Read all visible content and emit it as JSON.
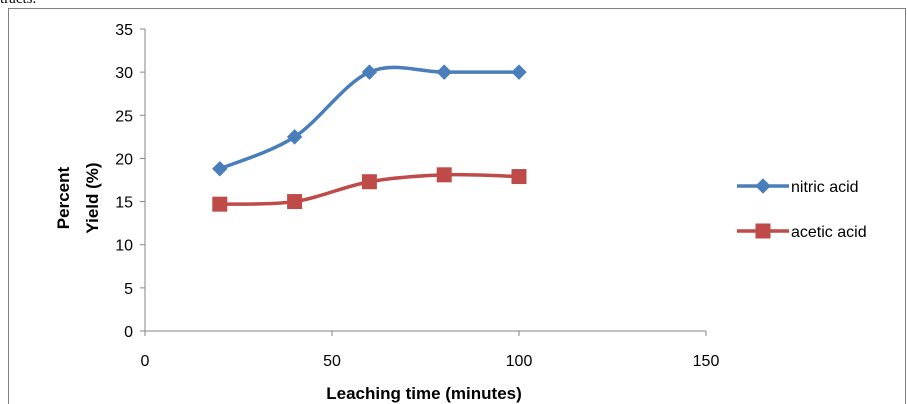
{
  "page": {
    "cropped_top_text": "tracts."
  },
  "chart_data": {
    "type": "line",
    "title": "",
    "xlabel": "Leaching time (minutes)",
    "ylabel_lines": [
      "Percent",
      "Yield (%)"
    ],
    "x": [
      20,
      40,
      60,
      80,
      100
    ],
    "xlim": [
      0,
      150
    ],
    "ylim": [
      0,
      35
    ],
    "xticks": [
      0,
      50,
      100,
      150
    ],
    "yticks": [
      0,
      5,
      10,
      15,
      20,
      25,
      30,
      35
    ],
    "grid": false,
    "smooth": true,
    "legend_position": "right",
    "series": [
      {
        "name": "nitric acid",
        "values": [
          18.8,
          22.5,
          30,
          30,
          30
        ],
        "color": "#4a7ebb",
        "marker": "diamond"
      },
      {
        "name": "acetic acid",
        "values": [
          14.7,
          15.0,
          17.3,
          18.1,
          17.9
        ],
        "color": "#be4b48",
        "marker": "square"
      }
    ]
  }
}
